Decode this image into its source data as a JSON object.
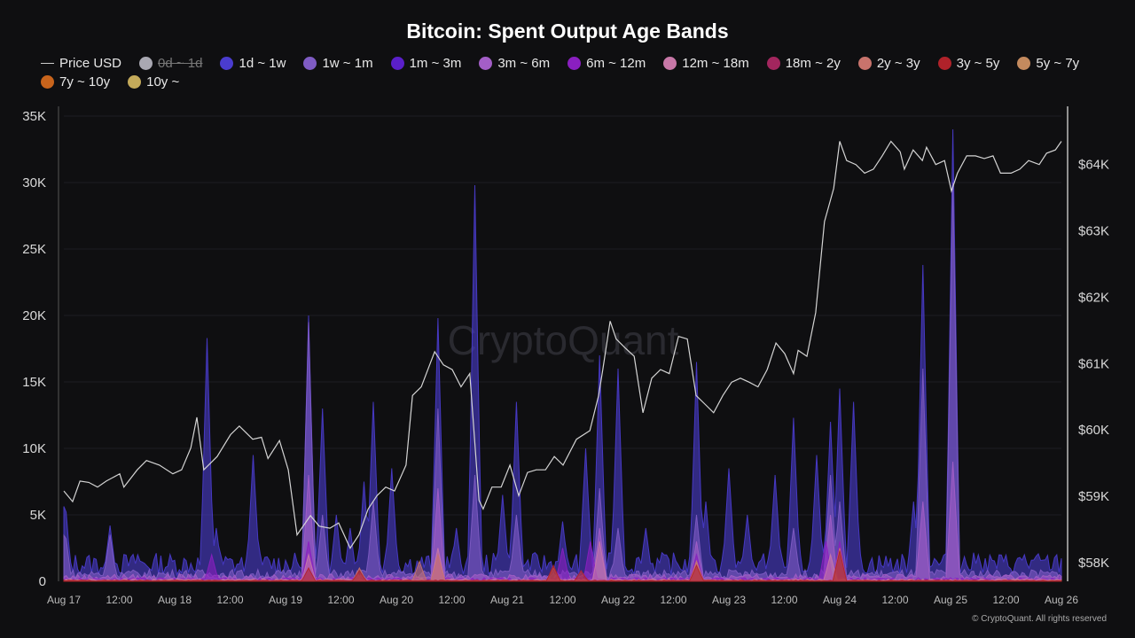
{
  "chart_data": {
    "type": "area",
    "title": "Bitcoin: Spent Output Age Bands",
    "watermark": "CryptoQuant",
    "footer": "© CryptoQuant. All rights reserved",
    "x_unit": "hours since Aug 17 00:00",
    "xlim": [
      0,
      216
    ],
    "x_ticks": [
      {
        "h": 0,
        "label": "Aug 17"
      },
      {
        "h": 12,
        "label": "12:00"
      },
      {
        "h": 24,
        "label": "Aug 18"
      },
      {
        "h": 36,
        "label": "12:00"
      },
      {
        "h": 48,
        "label": "Aug 19"
      },
      {
        "h": 60,
        "label": "12:00"
      },
      {
        "h": 72,
        "label": "Aug 20"
      },
      {
        "h": 84,
        "label": "12:00"
      },
      {
        "h": 96,
        "label": "Aug 21"
      },
      {
        "h": 108,
        "label": "12:00"
      },
      {
        "h": 120,
        "label": "Aug 22"
      },
      {
        "h": 132,
        "label": "12:00"
      },
      {
        "h": 144,
        "label": "Aug 23"
      },
      {
        "h": 156,
        "label": "12:00"
      },
      {
        "h": 168,
        "label": "Aug 24"
      },
      {
        "h": 180,
        "label": "12:00"
      },
      {
        "h": 192,
        "label": "Aug 25"
      },
      {
        "h": 204,
        "label": "12:00"
      },
      {
        "h": 216,
        "label": "Aug 26"
      }
    ],
    "y_left": {
      "lim": [
        0,
        35
      ],
      "unit": "K BTC",
      "ticks": [
        {
          "v": 0,
          "label": "0"
        },
        {
          "v": 5,
          "label": "5K"
        },
        {
          "v": 10,
          "label": "10K"
        },
        {
          "v": 15,
          "label": "15K"
        },
        {
          "v": 20,
          "label": "20K"
        },
        {
          "v": 25,
          "label": "25K"
        },
        {
          "v": 30,
          "label": "30K"
        },
        {
          "v": 35,
          "label": "35K"
        }
      ]
    },
    "y_right": {
      "lim": [
        57.72,
        64.73
      ],
      "unit": "K USD",
      "ticks": [
        {
          "v": 58,
          "label": "$58K"
        },
        {
          "v": 59,
          "label": "$59K"
        },
        {
          "v": 60,
          "label": "$60K"
        },
        {
          "v": 61,
          "label": "$61K"
        },
        {
          "v": 62,
          "label": "$62K"
        },
        {
          "v": 63,
          "label": "$63K"
        },
        {
          "v": 64,
          "label": "$64K"
        }
      ]
    },
    "legend": [
      {
        "name": "Price USD",
        "color": "#cccccc",
        "kind": "line",
        "enabled": true
      },
      {
        "name": "0d ~ 1d",
        "color": "#a9a8b2",
        "enabled": false
      },
      {
        "name": "1d ~ 1w",
        "color": "#4a3ccf",
        "enabled": true
      },
      {
        "name": "1w ~ 1m",
        "color": "#7f5cc4",
        "enabled": true
      },
      {
        "name": "1m ~ 3m",
        "color": "#5a1fc9",
        "enabled": true
      },
      {
        "name": "3m ~ 6m",
        "color": "#a35ec7",
        "enabled": true
      },
      {
        "name": "6m ~ 12m",
        "color": "#8a1fc0",
        "enabled": true
      },
      {
        "name": "12m ~ 18m",
        "color": "#c878a8",
        "enabled": true
      },
      {
        "name": "18m ~ 2y",
        "color": "#a3265e",
        "enabled": true
      },
      {
        "name": "2y ~ 3y",
        "color": "#c8736c",
        "enabled": true
      },
      {
        "name": "3y ~ 5y",
        "color": "#b0222a",
        "enabled": true
      },
      {
        "name": "5y ~ 7y",
        "color": "#c48a5e",
        "enabled": true
      },
      {
        "name": "7y ~ 10y",
        "color": "#c8641c",
        "enabled": true
      },
      {
        "name": "10y ~",
        "color": "#c4aa5a",
        "enabled": true
      }
    ],
    "price": [
      [
        0,
        59.08
      ],
      [
        1.9,
        58.92
      ],
      [
        3.5,
        59.23
      ],
      [
        5.4,
        59.21
      ],
      [
        7.3,
        59.14
      ],
      [
        9.2,
        59.23
      ],
      [
        12.1,
        59.34
      ],
      [
        13,
        59.14
      ],
      [
        15.9,
        59.4
      ],
      [
        17.9,
        59.54
      ],
      [
        20.7,
        59.47
      ],
      [
        23.6,
        59.34
      ],
      [
        25.5,
        59.4
      ],
      [
        27.5,
        59.73
      ],
      [
        28.8,
        60.19
      ],
      [
        30.3,
        59.4
      ],
      [
        33.2,
        59.6
      ],
      [
        36.1,
        59.93
      ],
      [
        38,
        60.06
      ],
      [
        40.9,
        59.86
      ],
      [
        42.8,
        59.89
      ],
      [
        44.2,
        59.57
      ],
      [
        46.7,
        59.84
      ],
      [
        48.6,
        59.4
      ],
      [
        50.5,
        58.42
      ],
      [
        53.4,
        58.71
      ],
      [
        55.3,
        58.55
      ],
      [
        57.6,
        58.52
      ],
      [
        59.5,
        58.6
      ],
      [
        62,
        58.22
      ],
      [
        63.9,
        58.42
      ],
      [
        65.9,
        58.81
      ],
      [
        67.8,
        59.01
      ],
      [
        69.7,
        59.14
      ],
      [
        71.6,
        59.08
      ],
      [
        74.1,
        59.47
      ],
      [
        75.5,
        60.52
      ],
      [
        77.4,
        60.65
      ],
      [
        80.3,
        61.18
      ],
      [
        82.2,
        60.98
      ],
      [
        84.1,
        60.91
      ],
      [
        86,
        60.65
      ],
      [
        87.9,
        60.85
      ],
      [
        89.9,
        58.94
      ],
      [
        90.8,
        58.81
      ],
      [
        92.7,
        59.14
      ],
      [
        94.7,
        59.14
      ],
      [
        96.6,
        59.47
      ],
      [
        98.5,
        59.01
      ],
      [
        100.4,
        59.36
      ],
      [
        102.3,
        59.4
      ],
      [
        104.3,
        59.4
      ],
      [
        106.2,
        59.6
      ],
      [
        108.1,
        59.47
      ],
      [
        111,
        59.86
      ],
      [
        113.9,
        59.99
      ],
      [
        115.8,
        60.52
      ],
      [
        116.7,
        60.91
      ],
      [
        118.3,
        61.64
      ],
      [
        119.6,
        61.37
      ],
      [
        121.5,
        61.24
      ],
      [
        123.5,
        61.11
      ],
      [
        125.4,
        60.26
      ],
      [
        127.3,
        60.78
      ],
      [
        129.2,
        60.91
      ],
      [
        131.1,
        60.85
      ],
      [
        133.1,
        61.41
      ],
      [
        135,
        61.37
      ],
      [
        136.9,
        60.52
      ],
      [
        138.8,
        60.39
      ],
      [
        140.7,
        60.26
      ],
      [
        142.7,
        60.52
      ],
      [
        144.6,
        60.72
      ],
      [
        146.5,
        60.78
      ],
      [
        148.4,
        60.72
      ],
      [
        150.3,
        60.65
      ],
      [
        152.3,
        60.91
      ],
      [
        154.2,
        61.31
      ],
      [
        156.1,
        61.15
      ],
      [
        158,
        60.85
      ],
      [
        159,
        61.2
      ],
      [
        160.9,
        61.11
      ],
      [
        162.8,
        61.77
      ],
      [
        164.7,
        63.14
      ],
      [
        166.7,
        63.64
      ],
      [
        168,
        64.35
      ],
      [
        169.5,
        64.06
      ],
      [
        171.5,
        64
      ],
      [
        173.4,
        63.87
      ],
      [
        175.3,
        63.93
      ],
      [
        177.2,
        64.13
      ],
      [
        179.1,
        64.35
      ],
      [
        181.1,
        64.19
      ],
      [
        182,
        63.93
      ],
      [
        183.9,
        64.22
      ],
      [
        185.9,
        64.06
      ],
      [
        186.8,
        64.26
      ],
      [
        188.8,
        64
      ],
      [
        190.7,
        64.06
      ],
      [
        192.2,
        63.6
      ],
      [
        193.5,
        63.87
      ],
      [
        195.5,
        64.13
      ],
      [
        197.4,
        64.13
      ],
      [
        199.3,
        64.09
      ],
      [
        201.2,
        64.13
      ],
      [
        202.8,
        63.87
      ],
      [
        205.1,
        63.87
      ],
      [
        207,
        63.93
      ],
      [
        208.9,
        64.06
      ],
      [
        211.2,
        64
      ],
      [
        212.8,
        64.17
      ],
      [
        214.7,
        64.22
      ],
      [
        216,
        64.35
      ]
    ],
    "series": [
      {
        "name": "1d ~ 1w",
        "baseline": 1.2,
        "peaks": [
          [
            0.2,
            6.5
          ],
          [
            10,
            4.2
          ],
          [
            16,
            2
          ],
          [
            31,
            18.3
          ],
          [
            33,
            4
          ],
          [
            41,
            9.5
          ],
          [
            53,
            20
          ],
          [
            56,
            13
          ],
          [
            59,
            5
          ],
          [
            62,
            4
          ],
          [
            65,
            7.5
          ],
          [
            67,
            13.5
          ],
          [
            71,
            8.5
          ],
          [
            81,
            19.8
          ],
          [
            85,
            4
          ],
          [
            89,
            29.8
          ],
          [
            95,
            6.5
          ],
          [
            98,
            13.5
          ],
          [
            108,
            4.5
          ],
          [
            113,
            10
          ],
          [
            116,
            17
          ],
          [
            120,
            16
          ],
          [
            126,
            4
          ],
          [
            137,
            16.5
          ],
          [
            139,
            6
          ],
          [
            144,
            8.5
          ],
          [
            148,
            5
          ],
          [
            154,
            8
          ],
          [
            158,
            12.3
          ],
          [
            163,
            9.5
          ],
          [
            166,
            12
          ],
          [
            168,
            14.5
          ],
          [
            171,
            13.5
          ],
          [
            184,
            6
          ],
          [
            186,
            23.8
          ],
          [
            192.5,
            34
          ],
          [
            198,
            2
          ],
          [
            208,
            2
          ]
        ]
      },
      {
        "name": "1w ~ 1m",
        "baseline": 0.5,
        "peaks": [
          [
            0.2,
            4
          ],
          [
            10,
            3.5
          ],
          [
            53,
            19.5
          ],
          [
            56,
            5
          ],
          [
            67,
            6
          ],
          [
            81,
            13
          ],
          [
            89,
            8
          ],
          [
            98,
            5
          ],
          [
            116,
            7
          ],
          [
            120,
            4
          ],
          [
            137,
            5
          ],
          [
            158,
            4
          ],
          [
            166,
            8
          ],
          [
            168,
            6
          ],
          [
            186,
            16
          ],
          [
            192.5,
            30
          ]
        ]
      },
      {
        "name": "3m ~ 6m",
        "baseline": 0.3,
        "peaks": [
          [
            53,
            8
          ],
          [
            81,
            7
          ],
          [
            116,
            4
          ],
          [
            137,
            3
          ],
          [
            166,
            5
          ],
          [
            186,
            6
          ],
          [
            192.5,
            9
          ]
        ]
      },
      {
        "name": "6m ~ 12m",
        "baseline": 0.15,
        "peaks": [
          [
            32,
            2
          ],
          [
            53,
            3
          ],
          [
            81,
            2
          ],
          [
            108,
            2.5
          ],
          [
            114,
            3
          ],
          [
            137,
            2
          ],
          [
            165,
            3
          ],
          [
            168,
            3
          ]
        ]
      },
      {
        "name": "12m ~ 18m",
        "baseline": 0.1,
        "peaks": [
          [
            53,
            2
          ],
          [
            81,
            2.5
          ],
          [
            116,
            3
          ],
          [
            137,
            1.5
          ],
          [
            166,
            2
          ]
        ]
      },
      {
        "name": "2y ~ 3y",
        "baseline": 0.05,
        "peaks": [
          [
            64,
            1
          ],
          [
            77,
            1.5
          ],
          [
            81,
            2
          ],
          [
            106,
            1
          ],
          [
            137,
            1.5
          ],
          [
            168,
            2.5
          ]
        ]
      },
      {
        "name": "3y ~ 5y",
        "baseline": 0.05,
        "peaks": [
          [
            53,
            1
          ],
          [
            64,
            0.8
          ],
          [
            106,
            1.2
          ],
          [
            112,
            0.8
          ],
          [
            137,
            1.2
          ],
          [
            168,
            2.3
          ]
        ]
      }
    ]
  }
}
